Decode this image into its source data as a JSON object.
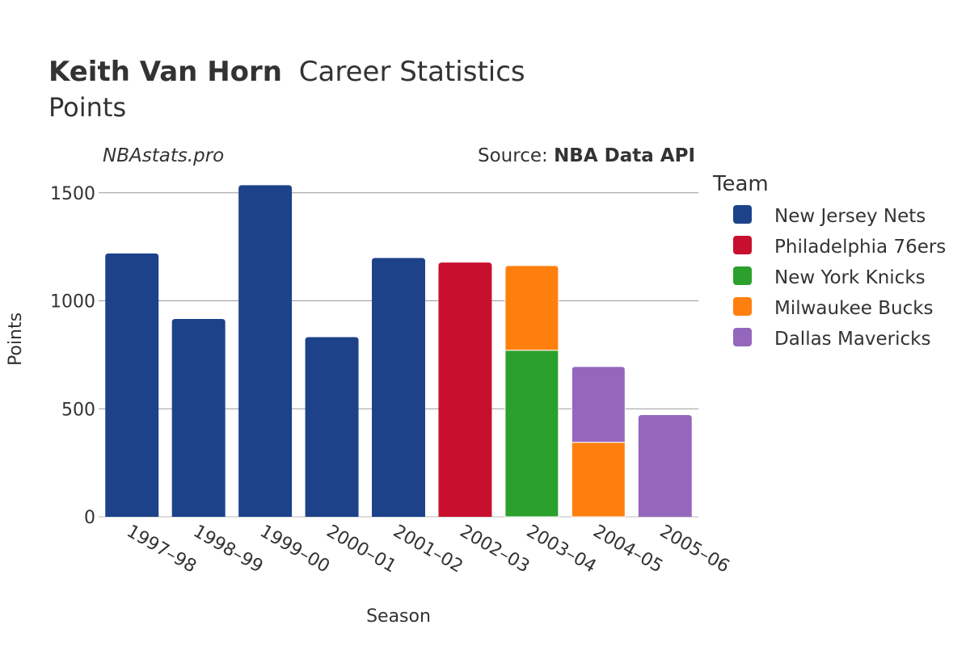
{
  "header": {
    "player_name": "Keith Van Horn",
    "title_rest": "Career Statistics",
    "subtitle": "Points",
    "site": "NBAstats.pro",
    "source_prefix": "Source: ",
    "source_name": "NBA Data API"
  },
  "legend": {
    "title": "Team",
    "entries": [
      {
        "name": "New Jersey Nets",
        "color": "#1d428a"
      },
      {
        "name": "Philadelphia 76ers",
        "color": "#c8102e"
      },
      {
        "name": "New York Knicks",
        "color": "#2ca02c"
      },
      {
        "name": "Milwaukee Bucks",
        "color": "#ff7f0e"
      },
      {
        "name": "Dallas Mavericks",
        "color": "#9467bd"
      }
    ]
  },
  "chart_data": {
    "type": "bar",
    "stacked": true,
    "title": "Keith Van Horn Career Statistics",
    "subtitle": "Points",
    "xlabel": "Season",
    "ylabel": "Points",
    "ylim": [
      0,
      1600
    ],
    "yticks": [
      0,
      500,
      1000,
      1500
    ],
    "grid": true,
    "legend_position": "right",
    "categories": [
      "1997–98",
      "1998–99",
      "1999–00",
      "2000–01",
      "2001–02",
      "2002–03",
      "2003–04",
      "2004–05",
      "2005–06"
    ],
    "series": [
      {
        "name": "New Jersey Nets",
        "color": "#1d428a",
        "values": [
          1219,
          916,
          1535,
          832,
          1198,
          0,
          0,
          0,
          0
        ]
      },
      {
        "name": "Philadelphia 76ers",
        "color": "#c8102e",
        "values": [
          0,
          0,
          0,
          0,
          0,
          1177,
          0,
          0,
          0
        ]
      },
      {
        "name": "New York Knicks",
        "color": "#2ca02c",
        "values": [
          0,
          0,
          0,
          0,
          0,
          0,
          771,
          0,
          0
        ]
      },
      {
        "name": "Milwaukee Bucks",
        "color": "#ff7f0e",
        "values": [
          0,
          0,
          0,
          0,
          0,
          0,
          392,
          345,
          0
        ]
      },
      {
        "name": "Dallas Mavericks",
        "color": "#9467bd",
        "values": [
          0,
          0,
          0,
          0,
          0,
          0,
          0,
          351,
          471
        ]
      }
    ]
  }
}
